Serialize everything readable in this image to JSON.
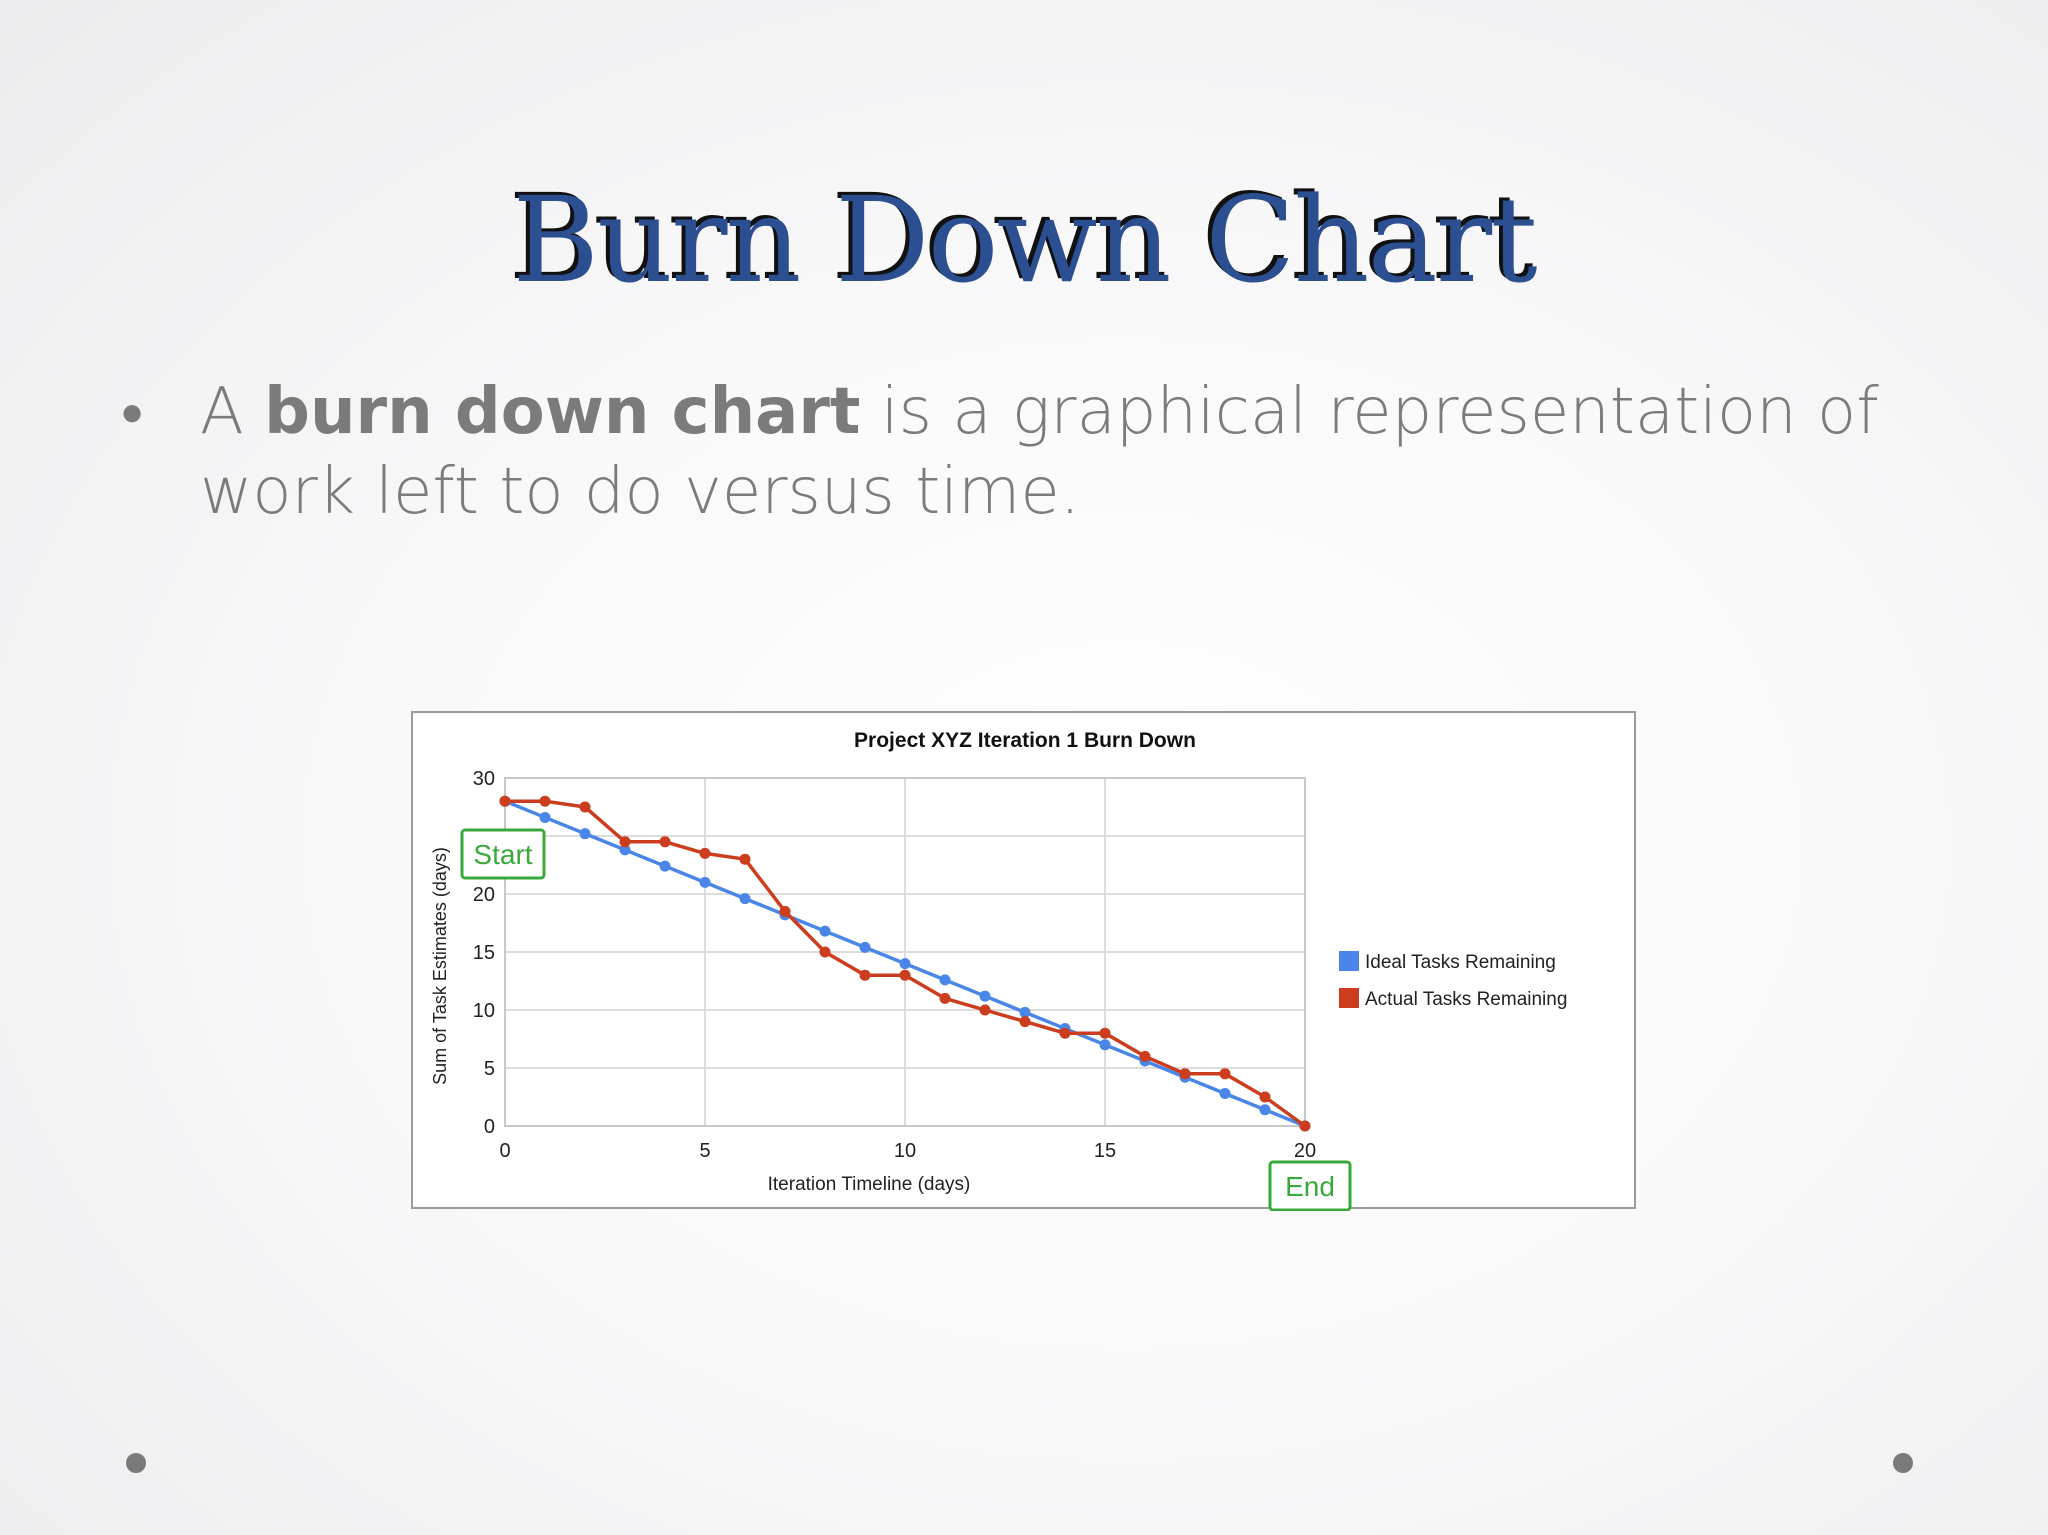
{
  "slide": {
    "title": "Burn Down Chart",
    "bullet": {
      "prefix": "A ",
      "bold": "burn down chart",
      "suffix": " is a graphical representation of work left to do versus time."
    }
  },
  "colors": {
    "title": "#2b4f91",
    "ideal": "#4a86e8",
    "actual": "#cc3d1e",
    "annotation": "#3aa93c"
  },
  "chart_data": {
    "type": "line",
    "title": "Project XYZ Iteration 1 Burn Down",
    "xlabel": "Iteration Timeline (days)",
    "ylabel": "Sum of Task Estimates (days)",
    "xlim": [
      0,
      20
    ],
    "ylim": [
      0,
      30
    ],
    "x_ticks": [
      0,
      5,
      10,
      15,
      20
    ],
    "y_ticks": [
      0,
      5,
      10,
      15,
      20,
      30
    ],
    "grid": true,
    "legend": "right",
    "x": [
      0,
      1,
      2,
      3,
      4,
      5,
      6,
      7,
      8,
      9,
      10,
      11,
      12,
      13,
      14,
      15,
      16,
      17,
      18,
      19,
      20
    ],
    "series": [
      {
        "name": "Ideal Tasks Remaining",
        "color": "#4a86e8",
        "values": [
          28,
          26.6,
          25.2,
          23.8,
          22.4,
          21,
          19.6,
          18.2,
          16.8,
          15.4,
          14,
          12.6,
          11.2,
          9.8,
          8.4,
          7,
          5.6,
          4.2,
          2.8,
          1.4,
          0
        ]
      },
      {
        "name": "Actual Tasks Remaining",
        "color": "#cc3d1e",
        "values": [
          28,
          28,
          27.5,
          24.5,
          24.5,
          23.5,
          23,
          18.5,
          15,
          13,
          13,
          11,
          10,
          9,
          8,
          8,
          6,
          4.5,
          4.5,
          2.5,
          0
        ]
      }
    ],
    "annotations": [
      {
        "text": "Start",
        "x": 0,
        "y": 23.5
      },
      {
        "text": "End",
        "x": 20,
        "y": -5
      }
    ]
  }
}
